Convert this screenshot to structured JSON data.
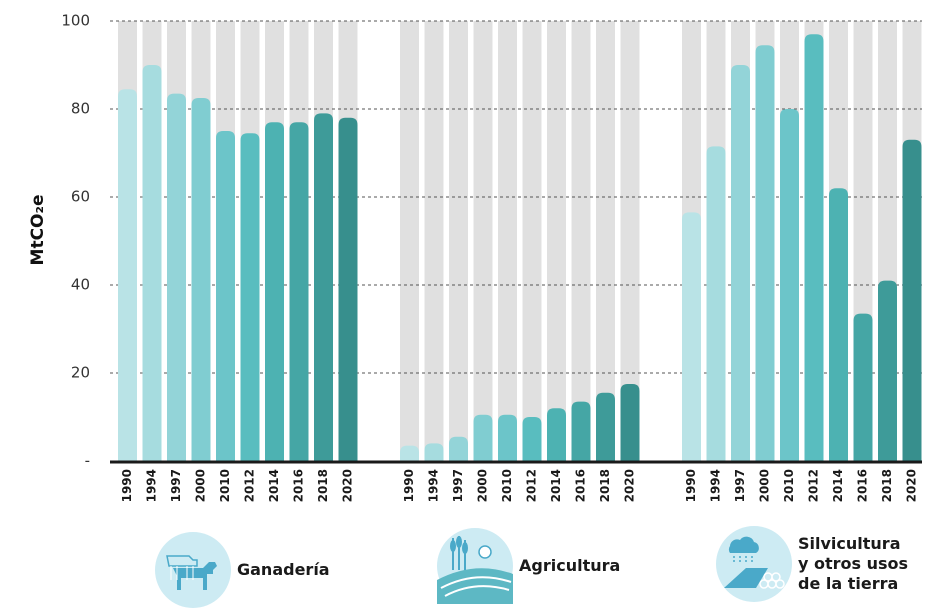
{
  "chart_data": {
    "type": "bar",
    "title": "",
    "xlabel": "",
    "ylabel": "MtCO₂e",
    "ylim": [
      0,
      100
    ],
    "y_ticks": [
      {
        "value": 0,
        "label": "-"
      },
      {
        "value": 20,
        "label": "20"
      },
      {
        "value": 40,
        "label": "40"
      },
      {
        "value": 60,
        "label": "60"
      },
      {
        "value": 80,
        "label": "80"
      },
      {
        "value": 100,
        "label": "100"
      }
    ],
    "grid": true,
    "background_bars": true,
    "groups": [
      {
        "name": "Ganadería",
        "categories": [
          "1990",
          "1994",
          "1997",
          "2000",
          "2010",
          "2012",
          "2014",
          "2016",
          "2018",
          "2020"
        ],
        "values": [
          84.5,
          90,
          83.5,
          82.5,
          75,
          74.5,
          77,
          77,
          79,
          78
        ]
      },
      {
        "name": "Agricultura",
        "categories": [
          "1990",
          "1994",
          "1997",
          "2000",
          "2010",
          "2012",
          "2014",
          "2016",
          "2018",
          "2020"
        ],
        "values": [
          3.5,
          4,
          5.5,
          10.5,
          10.5,
          10,
          12,
          13.5,
          15.5,
          17.5
        ]
      },
      {
        "name": "Silvicultura y otros usos de la tierra",
        "categories": [
          "1990",
          "1994",
          "1997",
          "2000",
          "2010",
          "2012",
          "2014",
          "2016",
          "2018",
          "2020"
        ],
        "values": [
          56.5,
          71.5,
          90,
          94.5,
          80,
          97,
          62,
          33.5,
          41,
          73
        ]
      }
    ]
  },
  "legend": [
    {
      "icon": "cow-icon",
      "label": "Ganadería"
    },
    {
      "icon": "wheat-field-icon",
      "label": "Agricultura"
    },
    {
      "icon": "forest-rain-icon",
      "label": "Silvicultura\ny otros usos\nde la tierra"
    }
  ],
  "colors": {
    "background_bar": "#e0e0e0",
    "axis": "#1a1a1a",
    "grid": "#555555",
    "palette": [
      "#b9e3e6",
      "#a6dcdf",
      "#93d4d8",
      "#80cdd1",
      "#6cc5c9",
      "#59bdbf",
      "#4db2b2",
      "#45a6a5",
      "#3e9b99",
      "#378f8d"
    ],
    "icon_bg": "#cdebf3"
  }
}
